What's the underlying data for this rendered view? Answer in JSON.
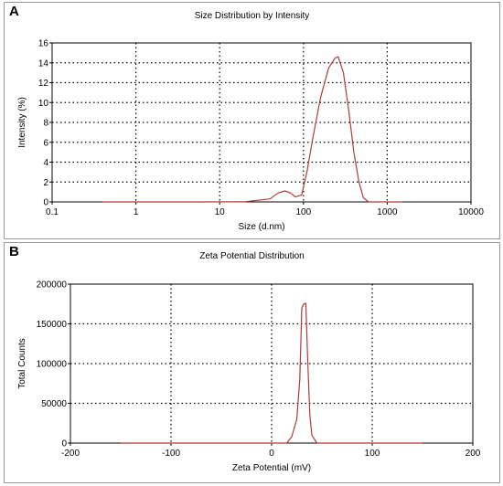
{
  "chart_data": [
    {
      "panel_label": "A",
      "type": "line",
      "title": "Size Distribution by Intensity",
      "xlabel": "Size (d.nm)",
      "ylabel": "Intensity (%)",
      "xscale": "log",
      "xlim": [
        0.1,
        10000
      ],
      "ylim": [
        0,
        16
      ],
      "xticks": [
        "0.1",
        "1",
        "10",
        "100",
        "1000",
        "10000"
      ],
      "xtick_values": [
        0.1,
        1,
        10,
        100,
        1000,
        10000
      ],
      "yticks": [
        "0",
        "2",
        "4",
        "6",
        "8",
        "10",
        "12",
        "14",
        "16"
      ],
      "grid": true,
      "line_color": "#b03a3a",
      "series": [
        {
          "x": [
            0.4,
            1,
            5,
            20,
            40,
            50,
            60,
            70,
            80,
            95,
            110,
            130,
            160,
            200,
            240,
            260,
            300,
            350,
            400,
            460,
            520,
            600,
            800,
            1500
          ],
          "y": [
            0,
            0,
            0,
            0.02,
            0.3,
            0.9,
            1.1,
            0.9,
            0.5,
            0.7,
            3.0,
            6.5,
            10.5,
            13.5,
            14.5,
            14.6,
            13.0,
            9.0,
            5.0,
            2.0,
            0.4,
            0,
            0,
            0
          ]
        }
      ]
    },
    {
      "panel_label": "B",
      "type": "line",
      "title": "Zeta Potential Distribution",
      "xlabel": "Zeta Potential (mV)",
      "ylabel": "Total Counts",
      "xscale": "linear",
      "xlim": [
        -200,
        200
      ],
      "ylim": [
        0,
        200000
      ],
      "xticks": [
        "-200",
        "-100",
        "0",
        "100",
        "200"
      ],
      "xtick_values": [
        -200,
        -100,
        0,
        100,
        200
      ],
      "yticks": [
        "0",
        "50000",
        "100000",
        "150000",
        "200000"
      ],
      "grid": true,
      "line_color": "#b03a3a",
      "series": [
        {
          "x": [
            -150,
            0,
            15,
            20,
            25,
            28,
            30,
            32,
            34,
            36,
            38,
            40,
            45,
            150
          ],
          "y": [
            0,
            0,
            0,
            8000,
            30000,
            80000,
            170000,
            175000,
            176000,
            100000,
            35000,
            10000,
            0,
            0
          ]
        }
      ]
    }
  ]
}
